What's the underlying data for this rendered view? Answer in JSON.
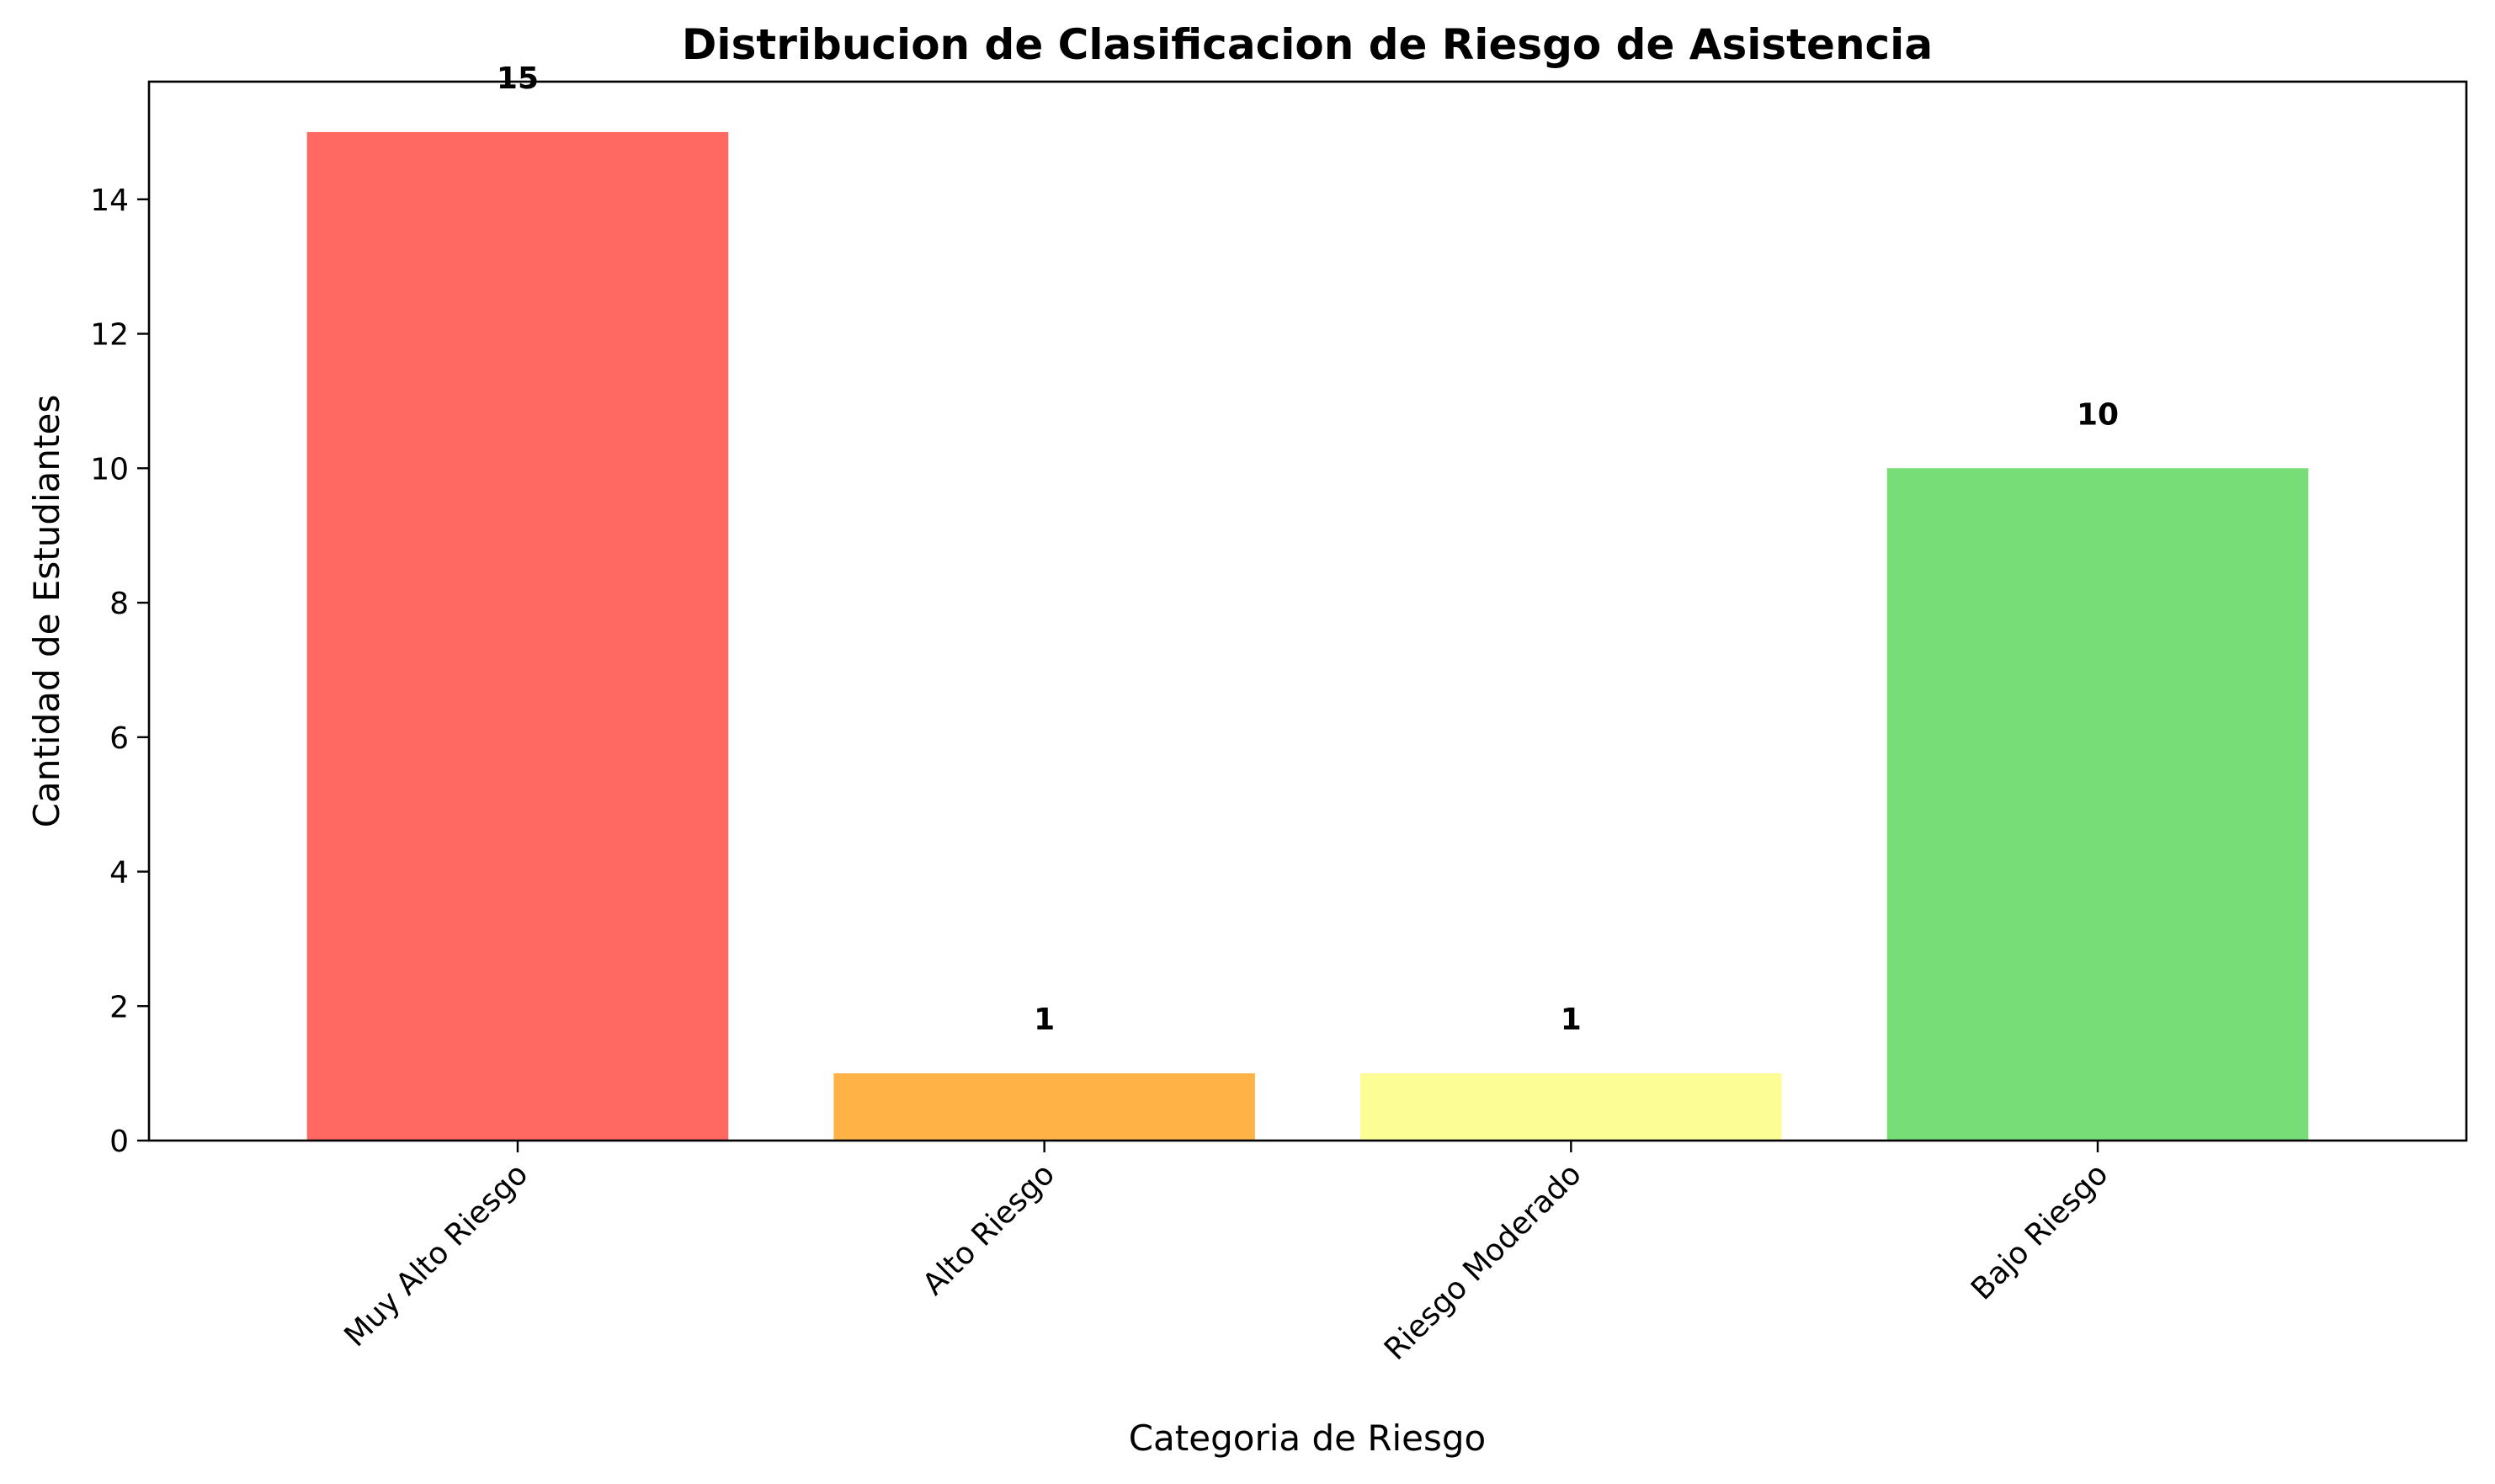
{
  "chart_data": {
    "type": "bar",
    "title": "Distribucion de Clasificacion de Riesgo de Asistencia",
    "xlabel": "Categoria de Riesgo",
    "ylabel": "Cantidad de Estudiantes",
    "categories": [
      "Muy Alto Riesgo",
      "Alto Riesgo",
      "Riesgo Moderado",
      "Bajo Riesgo"
    ],
    "values": [
      15,
      1,
      1,
      10
    ],
    "data_labels": [
      "15",
      "1",
      "1",
      "10"
    ],
    "colors": [
      "#ff6961",
      "#ffb347",
      "#fdfd96",
      "#77dd77"
    ],
    "ylim": [
      0,
      15.75
    ],
    "yticks": [
      0,
      2,
      4,
      6,
      8,
      10,
      12,
      14
    ],
    "grid": false,
    "legend": "none"
  }
}
